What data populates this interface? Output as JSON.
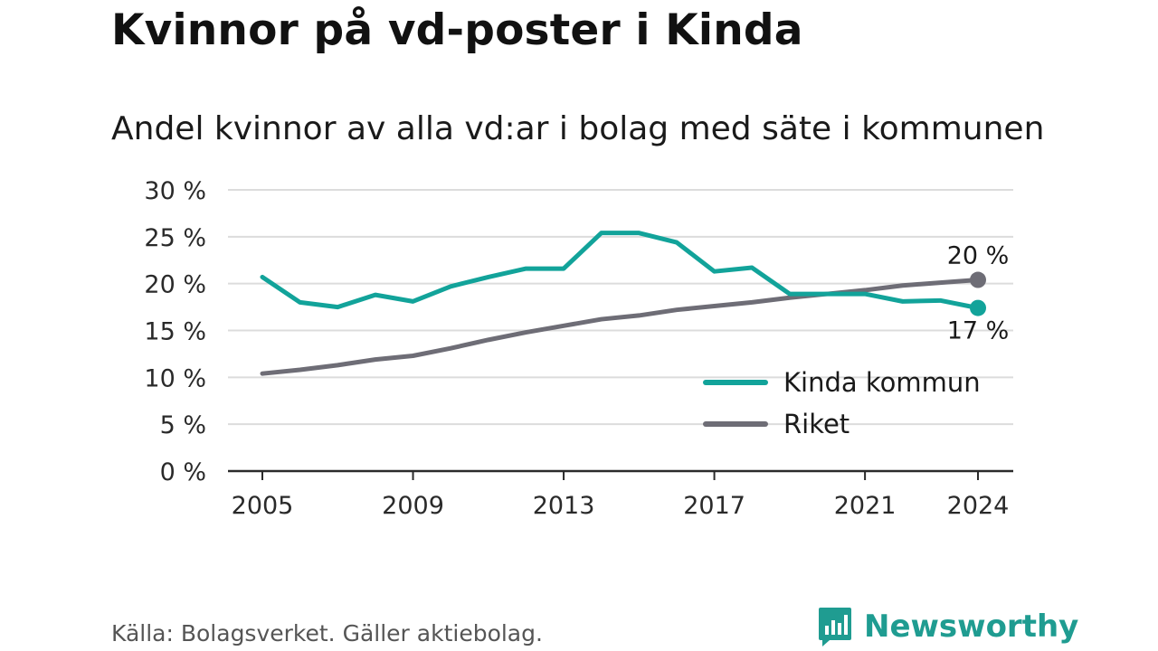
{
  "title": "Kvinnor på vd-poster i Kinda",
  "subtitle": "Andel kvinnor av alla vd:ar i bolag med säte i kommunen",
  "source": "Källa: Bolagsverket. Gäller aktiebolag.",
  "brand": {
    "name": "Newsworthy",
    "icon": "newsworthy-logo-icon",
    "color": "#1f9c91"
  },
  "chart_data": {
    "type": "line",
    "x": [
      2005,
      2006,
      2007,
      2008,
      2009,
      2010,
      2011,
      2012,
      2013,
      2014,
      2015,
      2016,
      2017,
      2018,
      2019,
      2020,
      2021,
      2022,
      2023,
      2024
    ],
    "series": [
      {
        "name": "Kinda kommun",
        "color": "#12a39a",
        "values": [
          20.7,
          18.0,
          17.5,
          18.8,
          18.1,
          19.7,
          20.7,
          21.6,
          21.6,
          25.4,
          25.4,
          24.4,
          21.3,
          21.7,
          18.9,
          18.9,
          18.9,
          18.1,
          18.2,
          17.4
        ],
        "end_label": "17 %"
      },
      {
        "name": "Riket",
        "color": "#6e6d76",
        "values": [
          10.4,
          10.8,
          11.3,
          11.9,
          12.3,
          13.1,
          14.0,
          14.8,
          15.5,
          16.2,
          16.6,
          17.2,
          17.6,
          18.0,
          18.5,
          18.9,
          19.3,
          19.8,
          20.1,
          20.4
        ],
        "end_label": "20 %"
      }
    ],
    "xticks": [
      2005,
      2009,
      2013,
      2017,
      2021,
      2024
    ],
    "yticks": [
      "0 %",
      "5 %",
      "10 %",
      "15 %",
      "20 %",
      "25 %",
      "30 %"
    ],
    "ylim": [
      0,
      30
    ],
    "grid": true,
    "legend_position": "bottom-right"
  }
}
